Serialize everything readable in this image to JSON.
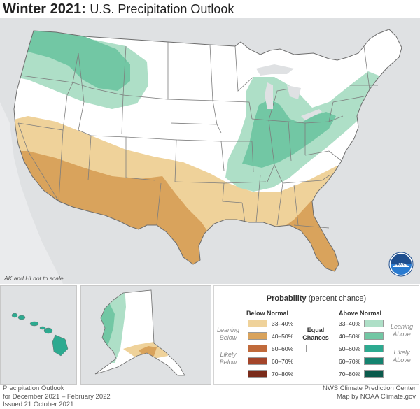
{
  "title": {
    "bold": "Winter 2021:",
    "subtitle": "U.S. Precipitation Outlook"
  },
  "map_note": "AK and HI not to scale",
  "legend": {
    "title_bold": "Probability",
    "title_rest": "(percent chance)",
    "below": {
      "header": "Below Normal",
      "items": [
        {
          "range": "33–40%",
          "color": "#efd29a"
        },
        {
          "range": "40–50%",
          "color": "#d9a35c"
        },
        {
          "range": "50–60%",
          "color": "#c06a3b"
        },
        {
          "range": "60–70%",
          "color": "#a4452a"
        },
        {
          "range": "70–80%",
          "color": "#7a2b1a"
        }
      ],
      "leaning_label": "Leaning Below",
      "likely_label": "Likely Below"
    },
    "above": {
      "header": "Above Normal",
      "items": [
        {
          "range": "33–40%",
          "color": "#aedfc7"
        },
        {
          "range": "40–50%",
          "color": "#72c7a4"
        },
        {
          "range": "50–60%",
          "color": "#2daa90"
        },
        {
          "range": "60–70%",
          "color": "#14836f"
        },
        {
          "range": "70–80%",
          "color": "#0a5a4c"
        }
      ],
      "leaning_label": "Leaning Above",
      "likely_label": "Likely Above"
    },
    "equal_label": "Equal Chances",
    "equal_color": "#ffffff"
  },
  "noaa_badge": "NOAA",
  "footer_left": [
    "Precipitation Outlook",
    "for December 2021 – February 2022",
    "Issued 21 October 2021"
  ],
  "footer_right": [
    "NWS Climate Prediction Center",
    "Map by NOAA Climate.gov"
  ]
}
